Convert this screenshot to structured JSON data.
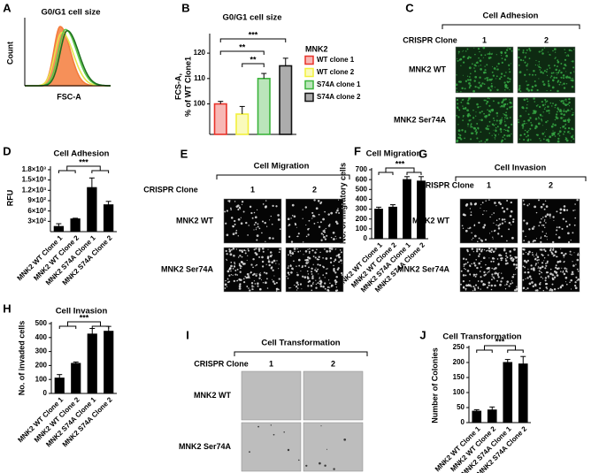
{
  "chart_data": [
    {
      "type": "density",
      "panel": "A",
      "title": "G0/G1 cell size",
      "xlabel": "FSC-A",
      "ylabel": "Count",
      "colors": [
        "#f47c3c",
        "#e6e64c",
        "#5cc84a",
        "#1e6e1e"
      ]
    },
    {
      "type": "bar",
      "panel": "B",
      "title": "G0/G1 cell size",
      "ylabel": [
        "FCS-A,",
        "% of WT Clone1"
      ],
      "legend_title": "MNK2",
      "series": [
        {
          "name": "WT clone 1",
          "color": "#e8332a",
          "values": [
            100
          ],
          "errors": [
            1
          ]
        },
        {
          "name": "WT clone 2",
          "color": "#f2f03c",
          "values": [
            96
          ],
          "errors": [
            3
          ]
        },
        {
          "name": "S74A clone 1",
          "color": "#3cb43c",
          "values": [
            110
          ],
          "errors": [
            2
          ]
        },
        {
          "name": "S74A clone 2",
          "color": "#111111",
          "values": [
            115
          ],
          "errors": [
            3
          ]
        }
      ],
      "ylim": [
        88,
        127
      ],
      "yticks": [
        100,
        110,
        120
      ],
      "annotations": [
        "***",
        "**",
        "**"
      ]
    },
    {
      "type": "bar",
      "panel": "D",
      "title": "Cell Adhesion",
      "ylabel": "RFU",
      "categories": [
        "MNK2 WT Clone 1",
        "MNK2 WT Clone 2",
        "MNK2 S74A Clone 1",
        "MNK2 S74A Clone 2"
      ],
      "values": [
        150,
        370,
        1280,
        780
      ],
      "errors": [
        80,
        20,
        280,
        100
      ],
      "color": "#000000",
      "ylim": [
        0,
        1850
      ],
      "yticks": [
        {
          "value": 300,
          "label": "3×10²"
        },
        {
          "value": 600,
          "label": "6×10²"
        },
        {
          "value": 900,
          "label": "9×10²"
        },
        {
          "value": 1200,
          "label": "1.2×10³"
        },
        {
          "value": 1500,
          "label": "1.5×10³"
        },
        {
          "value": 1800,
          "label": "1.8×10³"
        }
      ],
      "annotations": [
        "***"
      ]
    },
    {
      "type": "bar",
      "panel": "F",
      "title": "Cell Migration",
      "ylabel": "No. of migratory cells",
      "categories": [
        "MNK2 WT Clone 1",
        "MNK2 WT Clone 2",
        "MNK2 S74A Clone 1",
        "MNK2 S74A Clone 2"
      ],
      "values": [
        300,
        320,
        600,
        585
      ],
      "errors": [
        20,
        25,
        30,
        45
      ],
      "color": "#000000",
      "ylim": [
        0,
        700
      ],
      "yticks": [
        0,
        100,
        200,
        300,
        400,
        500,
        600,
        700
      ],
      "annotations": [
        "***"
      ]
    },
    {
      "type": "bar",
      "panel": "H",
      "title": "Cell Invasion",
      "ylabel": "No. of invaded cells",
      "categories": [
        "MNK2 WT Clone 1",
        "MNK2 WT Clone 2",
        "MNK2 S74A Clone 1",
        "MNK2 S74A Clone 2"
      ],
      "values": [
        110,
        215,
        425,
        445
      ],
      "errors": [
        25,
        10,
        40,
        35
      ],
      "color": "#000000",
      "ylim": [
        0,
        500
      ],
      "yticks": [
        0,
        100,
        200,
        300,
        400,
        500
      ],
      "annotations": [
        "***"
      ]
    },
    {
      "type": "bar",
      "panel": "J",
      "title": "Cell Transformation",
      "ylabel": "Number of Colonies",
      "categories": [
        "MNK2 WT Clone 1",
        "MNK2 WT Clone 2",
        "MNK2 S74A Clone 1",
        "MNK2 S74A Clone 2"
      ],
      "values": [
        38,
        42,
        200,
        195
      ],
      "errors": [
        5,
        10,
        10,
        25
      ],
      "color": "#000000",
      "ylim": [
        0,
        250
      ],
      "yticks": [
        0,
        50,
        100,
        150,
        200,
        250
      ],
      "annotations": [
        "***"
      ]
    }
  ],
  "image_panels": [
    {
      "panel": "C",
      "title": "Cell Adhesion",
      "column_header": "CRISPR Clone",
      "columns": [
        "1",
        "2"
      ],
      "rows": [
        "MNK2 WT",
        "MNK2 Ser74A"
      ]
    },
    {
      "panel": "E",
      "title": "Cell Migration",
      "column_header": "CRISPR Clone",
      "columns": [
        "1",
        "2"
      ],
      "rows": [
        "MNK2 WT",
        "MNK2 Ser74A"
      ]
    },
    {
      "panel": "G",
      "title": "Cell Invasion",
      "column_header": "CRISPR Clone",
      "columns": [
        "1",
        "2"
      ],
      "rows": [
        "MNK2 WT",
        "MNK2 Ser74A"
      ]
    },
    {
      "panel": "I",
      "title": "Cell Transformation",
      "column_header": "CRISPR Clone",
      "columns": [
        "1",
        "2"
      ],
      "rows": [
        "MNK2 WT",
        "MNK2 Ser74A"
      ]
    }
  ]
}
